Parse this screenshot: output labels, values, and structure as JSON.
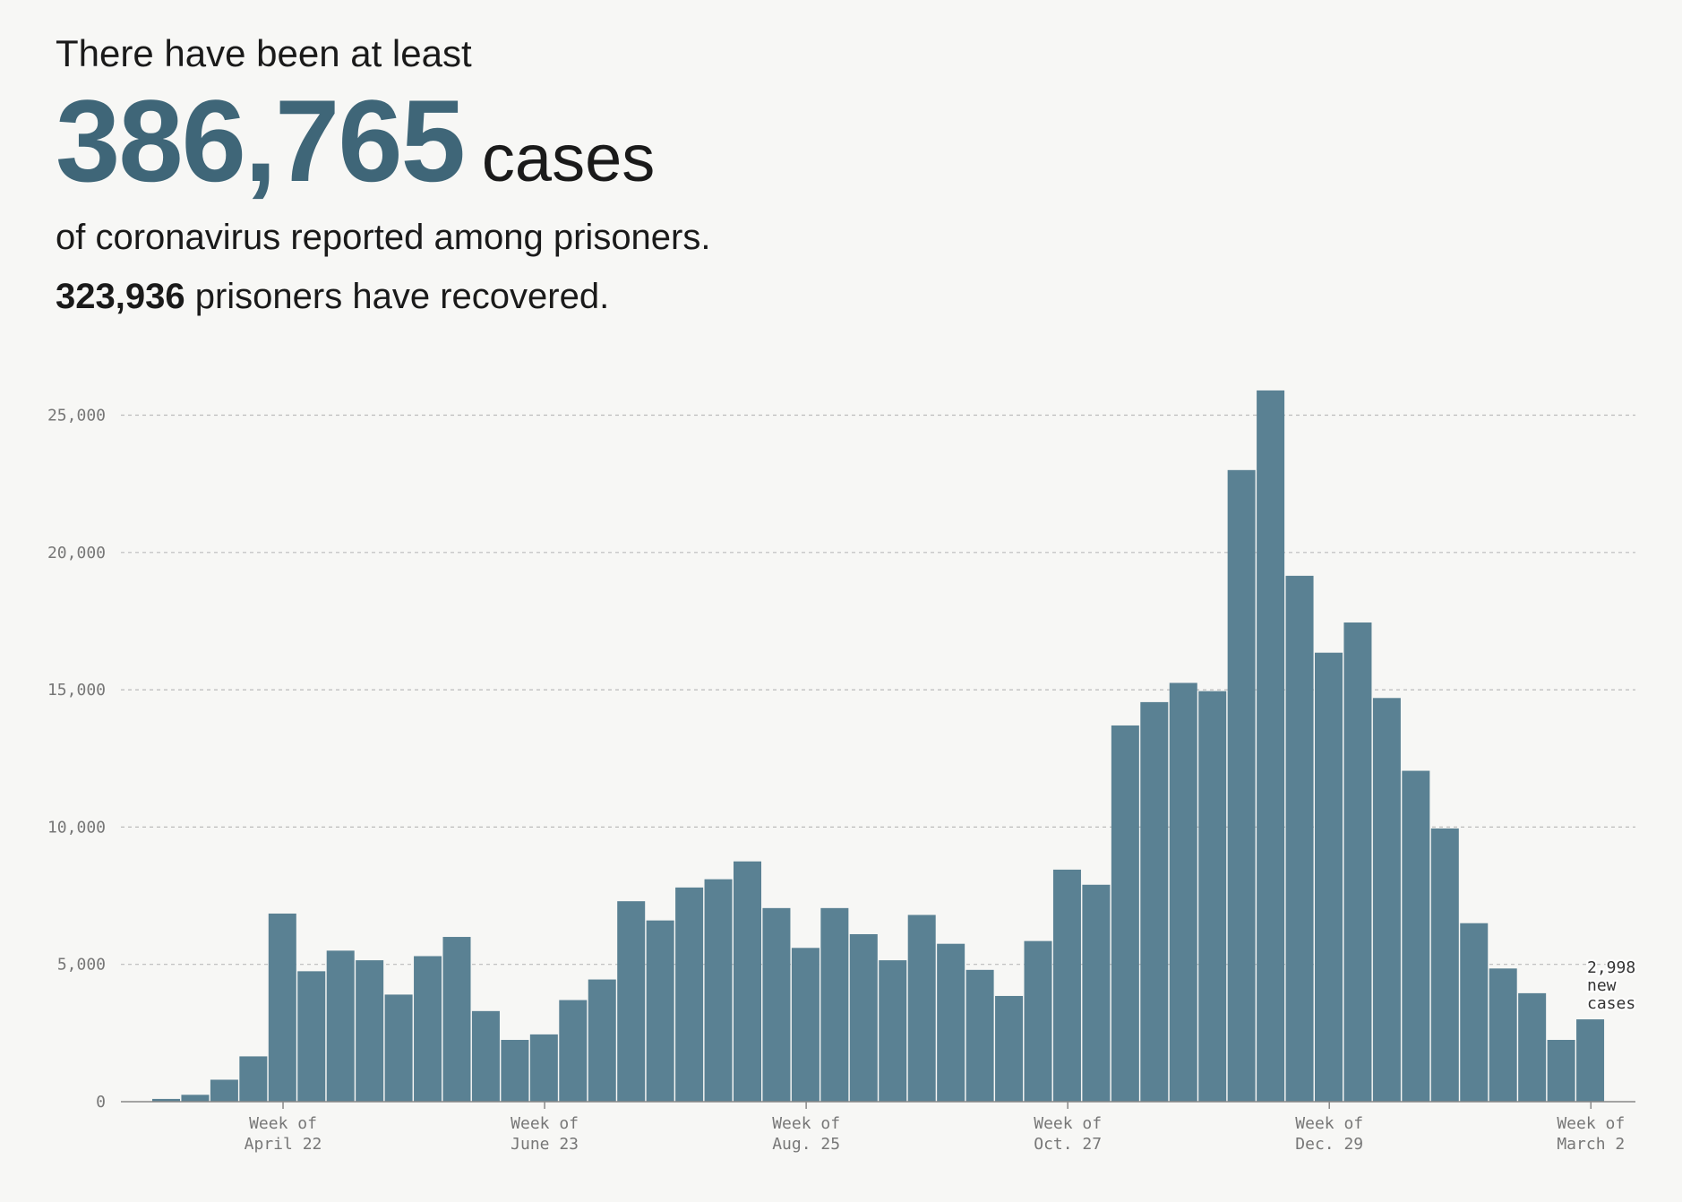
{
  "headline": {
    "intro": "There have been at least",
    "total_cases": "386,765",
    "unit": "cases",
    "subline": "of coronavirus reported among prisoners.",
    "recovered_number": "323,936",
    "recovered_text": "prisoners have recovered."
  },
  "colors": {
    "bar": "#5a8193",
    "accent": "#3f6678",
    "grid": "#bbbbbb",
    "axis": "#888888"
  },
  "chart_data": {
    "type": "bar",
    "title": "",
    "xlabel": "",
    "ylabel": "",
    "ylim": [
      0,
      27000
    ],
    "yticks": [
      {
        "value": 0,
        "label": "0"
      },
      {
        "value": 5000,
        "label": "5,000"
      },
      {
        "value": 10000,
        "label": "10,000"
      },
      {
        "value": 15000,
        "label": "15,000"
      },
      {
        "value": 20000,
        "label": "20,000"
      },
      {
        "value": 25000,
        "label": "25,000"
      }
    ],
    "grid": true,
    "values": [
      100,
      250,
      800,
      1650,
      6850,
      4750,
      5500,
      5150,
      3900,
      5300,
      6000,
      3300,
      2250,
      2450,
      3700,
      4450,
      7300,
      6600,
      7800,
      8100,
      8750,
      7050,
      5600,
      7050,
      6100,
      5150,
      6800,
      5750,
      4800,
      3850,
      5850,
      8450,
      7900,
      13700,
      14550,
      15250,
      14950,
      23000,
      25900,
      19150,
      16350,
      17450,
      14700,
      12050,
      9950,
      6500,
      4850,
      3950,
      2250,
      2998
    ],
    "xtick_labels": [
      {
        "index": 4.5,
        "line1": "Week of",
        "line2": "April 22"
      },
      {
        "index": 13.5,
        "line1": "Week of",
        "line2": "June 23"
      },
      {
        "index": 22.5,
        "line1": "Week of",
        "line2": "Aug. 25"
      },
      {
        "index": 31.5,
        "line1": "Week of",
        "line2": "Oct. 27"
      },
      {
        "index": 40.5,
        "line1": "Week of",
        "line2": "Dec. 29"
      },
      {
        "index": 49.5,
        "line1": "Week of",
        "line2": "March 2"
      }
    ],
    "annotation": {
      "lines": [
        "2,998",
        "new",
        "cases"
      ]
    }
  }
}
